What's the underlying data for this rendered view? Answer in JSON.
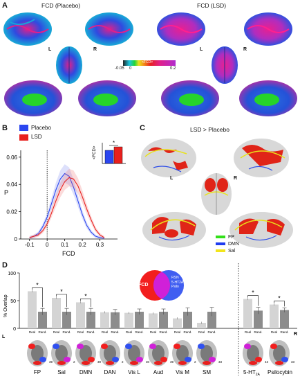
{
  "panelA": {
    "letter": "A",
    "title_placebo": "FCD (Placebo)",
    "title_lsd": "FCD (LSD)",
    "hemi_left": "L",
    "hemi_right": "R",
    "colorbar": {
      "label": "<FCD>",
      "tick_min": "-0.05",
      "tick_zero": "0",
      "tick_max": "0.2"
    }
  },
  "panelB": {
    "letter": "B",
    "legend": [
      {
        "name": "Placebo",
        "color": "#2b46f0"
      },
      {
        "name": "LSD",
        "color": "#e8201e"
      }
    ],
    "inset": {
      "ylabel": "<FCD>",
      "star": "*"
    }
  },
  "panelC": {
    "letter": "C",
    "title": "LSD > Placebo",
    "hemi_left": "L",
    "hemi_right": "R",
    "legend": [
      {
        "name": "FP",
        "color": "#33e01a"
      },
      {
        "name": "DMN",
        "color": "#1f3cf0"
      },
      {
        "name": "Sal",
        "color": "#f2e51c"
      }
    ]
  },
  "panelD": {
    "letter": "D",
    "ylabel": "% Overlap",
    "hemi_left": "L",
    "hemi_right": "R",
    "venn": {
      "left": "FCD",
      "right_lines": [
        "RSN",
        "5-HT2A",
        "Psilo"
      ]
    },
    "tick_real": "Real",
    "tick_rand": "Rand.",
    "networks": [
      "FP",
      "Sal",
      "DMN",
      "DAN",
      "Vis L",
      "Aud",
      "Vis M",
      "SM"
    ],
    "receptor_prefix": "5-HT",
    "receptor_sub": "2A",
    "psilocybin": "Psilocybin",
    "slice_numbers": [
      "39",
      "2",
      "39",
      "2",
      "30",
      "39",
      "2",
      "33",
      "43",
      "33"
    ]
  },
  "chart_data": [
    {
      "type": "line",
      "panel": "B",
      "xlabel": "FCD",
      "ylabel": "P",
      "xlim": [
        -0.15,
        0.4
      ],
      "ylim": [
        0,
        0.065
      ],
      "xticks": [
        "-0.1",
        "0",
        "0.1",
        "0.2",
        "0.3"
      ],
      "yticks": [
        "0",
        "0.02",
        "0.04",
        "0.06"
      ],
      "series": [
        {
          "name": "Placebo",
          "x": [
            -0.1,
            -0.075,
            -0.05,
            -0.025,
            0,
            0.025,
            0.05,
            0.075,
            0.1,
            0.125,
            0.15,
            0.175,
            0.2,
            0.225,
            0.25,
            0.275,
            0.3,
            0.325
          ],
          "y": [
            0.001,
            0.002,
            0.004,
            0.009,
            0.016,
            0.026,
            0.036,
            0.044,
            0.048,
            0.046,
            0.038,
            0.028,
            0.018,
            0.01,
            0.005,
            0.002,
            0.001,
            0.0005
          ]
        },
        {
          "name": "LSD",
          "x": [
            -0.1,
            -0.075,
            -0.05,
            -0.025,
            0,
            0.025,
            0.05,
            0.075,
            0.1,
            0.125,
            0.15,
            0.175,
            0.2,
            0.225,
            0.25,
            0.275,
            0.3,
            0.325
          ],
          "y": [
            0.001,
            0.002,
            0.003,
            0.006,
            0.011,
            0.019,
            0.028,
            0.036,
            0.042,
            0.045,
            0.044,
            0.039,
            0.031,
            0.022,
            0.014,
            0.007,
            0.003,
            0.001
          ]
        }
      ]
    },
    {
      "type": "bar",
      "panel": "B-inset",
      "ylabel": "<FCD>",
      "series": [
        {
          "name": "Placebo",
          "values": [
            0.095
          ]
        },
        {
          "name": "LSD",
          "values": [
            0.12
          ]
        }
      ]
    },
    {
      "type": "bar",
      "panel": "D",
      "ylabel": "% Overlap",
      "ylim": [
        0,
        100
      ],
      "yticks": [
        "0",
        "50",
        "100"
      ],
      "categories": [
        "FP",
        "Sal",
        "DMN",
        "DAN",
        "Vis L",
        "Aud",
        "Vis M",
        "SM",
        "5-HT2A",
        "Psilocybin"
      ],
      "series": [
        {
          "name": "Real",
          "values": [
            67,
            55,
            47,
            29,
            28,
            27,
            18,
            10,
            53,
            43
          ]
        },
        {
          "name": "Rand.",
          "values": [
            30,
            30,
            30,
            29,
            30,
            30,
            30,
            30,
            32,
            33
          ]
        }
      ],
      "errors_rand": [
        6,
        6,
        6,
        5,
        5,
        5,
        7,
        8,
        6,
        4
      ],
      "significant": [
        true,
        true,
        true,
        false,
        false,
        false,
        false,
        false,
        true,
        true
      ]
    }
  ]
}
